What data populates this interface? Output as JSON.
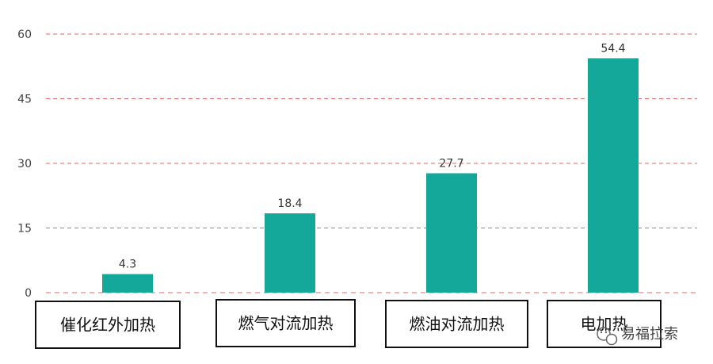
{
  "chart_data": {
    "type": "bar",
    "categories": [
      "催化红外加热",
      "燃气对流加热",
      "燃油对流加热",
      "电加热"
    ],
    "values": [
      4.3,
      18.4,
      27.7,
      54.4
    ],
    "value_labels": [
      "4.3",
      "18.4",
      "27.7",
      "54.4"
    ],
    "ylim": [
      0,
      60
    ],
    "yticks": [
      0,
      15,
      30,
      45,
      60
    ],
    "ytick_labels": [
      "0",
      "15",
      "30",
      "45",
      "60"
    ],
    "grid": true,
    "colors": {
      "bar": "#14A89A",
      "grid": "#E06666",
      "axis": "#E06666",
      "box_border": "#111111"
    }
  },
  "watermark": {
    "text": "易福拉索",
    "icon": "wechat-icon"
  }
}
